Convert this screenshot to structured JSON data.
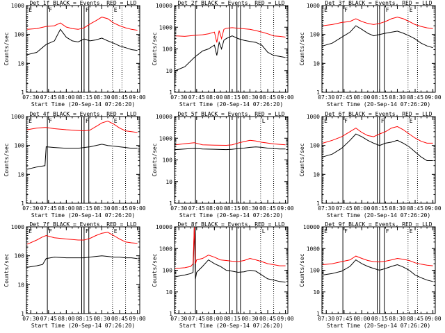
{
  "colors": {
    "events": "#000000",
    "lld": "#ff0000",
    "background": "#ffffff",
    "axis": "#000000"
  },
  "shared": {
    "xlabel": "Start Time (20-Sep-14 07:26:20)",
    "ylabel": "Counts/sec",
    "x_ticks": [
      "07:30",
      "07:45",
      "08:00",
      "08:15",
      "08:30",
      "08:45",
      "09:00"
    ],
    "x_range": [
      "07:26:20",
      "09:02:00"
    ],
    "y_scale": "log",
    "grid": false,
    "legend": "in title"
  },
  "chart_data": [
    {
      "type": "line",
      "title": "Det 1f BLACK = Events, RED = LLD",
      "ylim": [
        1,
        1000
      ],
      "y_ticks": [
        "1",
        "10",
        "100",
        "1000"
      ],
      "x": [
        "07:27",
        "07:35",
        "07:43",
        "07:50",
        "07:55",
        "08:00",
        "08:05",
        "08:10",
        "08:15",
        "08:20",
        "08:25",
        "08:30",
        "08:35",
        "08:40",
        "08:45",
        "08:50",
        "08:55",
        "09:00"
      ],
      "series": [
        {
          "name": "Events",
          "values": [
            20,
            24,
            45,
            60,
            150,
            80,
            60,
            55,
            70,
            60,
            65,
            75,
            60,
            50,
            40,
            35,
            30,
            28
          ]
        },
        {
          "name": "LLD",
          "values": [
            150,
            160,
            190,
            200,
            250,
            180,
            160,
            150,
            170,
            230,
            300,
            400,
            350,
            250,
            200,
            170,
            150,
            140
          ]
        }
      ],
      "markers": [
        {
          "label": "E",
          "x": "07:27",
          "style": "dotted"
        },
        {
          "label": "F",
          "x": "07:44",
          "style": "solid"
        },
        {
          "label": "",
          "x": "08:13",
          "style": "solid"
        },
        {
          "label": "F",
          "x": "08:15",
          "style": "solid"
        },
        {
          "label": "",
          "x": "08:19",
          "style": "solid"
        },
        {
          "label": "E",
          "x": "08:39",
          "style": "dotted"
        },
        {
          "label": "",
          "x": "08:47",
          "style": "dotted"
        }
      ]
    },
    {
      "type": "line",
      "title": "Det 2f BLACK = Events, RED = LLD",
      "ylim": [
        1,
        10000
      ],
      "y_ticks": [
        "1",
        "10",
        "100",
        "1000",
        "10000"
      ],
      "x": [
        "07:27",
        "07:35",
        "07:43",
        "07:50",
        "07:55",
        "08:00",
        "08:02",
        "08:04",
        "08:06",
        "08:08",
        "08:10",
        "08:15",
        "08:20",
        "08:25",
        "08:30",
        "08:35",
        "08:40",
        "08:45",
        "08:50",
        "08:55",
        "09:00"
      ],
      "series": [
        {
          "name": "Events",
          "values": [
            10,
            15,
            40,
            80,
            100,
            150,
            50,
            200,
            100,
            250,
            300,
            400,
            300,
            250,
            220,
            200,
            150,
            70,
            50,
            45,
            40
          ]
        },
        {
          "name": "LLD",
          "values": [
            400,
            380,
            420,
            450,
            500,
            600,
            200,
            700,
            300,
            800,
            900,
            950,
            900,
            850,
            800,
            700,
            600,
            500,
            400,
            380,
            350
          ]
        }
      ],
      "markers": [
        {
          "label": "",
          "x": "07:27",
          "style": "dotted"
        },
        {
          "label": "",
          "x": "07:44",
          "style": "solid"
        },
        {
          "label": "",
          "x": "08:13",
          "style": "solid"
        },
        {
          "label": "",
          "x": "08:19",
          "style": "solid"
        },
        {
          "label": "",
          "x": "08:22",
          "style": "solid"
        },
        {
          "label": "",
          "x": "08:39",
          "style": "dotted"
        },
        {
          "label": "",
          "x": "08:50",
          "style": "dotted"
        }
      ]
    },
    {
      "type": "line",
      "title": "Det 3f BLACK = Events, RED = LLD",
      "ylim": [
        1,
        1000
      ],
      "y_ticks": [
        "1",
        "10",
        "100",
        "1000"
      ],
      "x": [
        "07:27",
        "07:35",
        "07:43",
        "07:50",
        "07:55",
        "08:00",
        "08:05",
        "08:10",
        "08:15",
        "08:20",
        "08:25",
        "08:30",
        "08:35",
        "08:40",
        "08:45",
        "08:50",
        "08:55",
        "09:00"
      ],
      "series": [
        {
          "name": "Events",
          "values": [
            40,
            50,
            80,
            120,
            200,
            150,
            110,
            90,
            100,
            110,
            120,
            130,
            110,
            90,
            70,
            50,
            40,
            35
          ]
        },
        {
          "name": "LLD",
          "values": [
            200,
            220,
            260,
            280,
            350,
            280,
            240,
            220,
            240,
            280,
            350,
            400,
            350,
            280,
            220,
            190,
            170,
            160
          ]
        }
      ],
      "markers": [
        {
          "label": "E",
          "x": "07:27",
          "style": "dotted"
        },
        {
          "label": "F",
          "x": "07:44",
          "style": "solid"
        },
        {
          "label": "",
          "x": "08:13",
          "style": "solid"
        },
        {
          "label": "",
          "x": "08:15",
          "style": "solid"
        },
        {
          "label": "F",
          "x": "08:19",
          "style": "solid"
        },
        {
          "label": "E",
          "x": "08:39",
          "style": "dotted"
        },
        {
          "label": "",
          "x": "08:47",
          "style": "dotted"
        }
      ]
    },
    {
      "type": "line",
      "title": "Det 4f BLACK = Events, RED = LLD",
      "ylim": [
        1,
        1000
      ],
      "y_ticks": [
        "1",
        "10",
        "100",
        "1000"
      ],
      "x": [
        "07:27",
        "07:35",
        "07:42",
        "07:43",
        "07:50",
        "08:00",
        "08:10",
        "08:15",
        "08:20",
        "08:25",
        "08:30",
        "08:35",
        "08:40",
        "08:45",
        "08:50",
        "08:55",
        "09:00"
      ],
      "series": [
        {
          "name": "Events",
          "values": [
            15,
            18,
            20,
            90,
            85,
            80,
            80,
            85,
            90,
            100,
            110,
            100,
            95,
            90,
            85,
            80,
            80
          ]
        },
        {
          "name": "LLD",
          "values": [
            350,
            400,
            420,
            420,
            380,
            350,
            330,
            320,
            340,
            450,
            600,
            700,
            550,
            400,
            320,
            300,
            280
          ]
        }
      ],
      "markers": [
        {
          "label": "E",
          "x": "07:27",
          "style": "dotted"
        },
        {
          "label": "F",
          "x": "07:44",
          "style": "solid"
        },
        {
          "label": "",
          "x": "08:13",
          "style": "solid"
        },
        {
          "label": "F",
          "x": "08:15",
          "style": "solid"
        },
        {
          "label": "",
          "x": "08:19",
          "style": "solid"
        },
        {
          "label": "E",
          "x": "08:39",
          "style": "dotted"
        },
        {
          "label": "",
          "x": "08:50",
          "style": "dotted"
        }
      ]
    },
    {
      "type": "line",
      "title": "Det 5f BLACK = Events, RED = LLD",
      "ylim": [
        1,
        10000
      ],
      "y_ticks": [
        "1",
        "10",
        "100",
        "1000",
        "10000"
      ],
      "x": [
        "07:27",
        "07:35",
        "07:43",
        "07:50",
        "08:00",
        "08:10",
        "08:15",
        "08:20",
        "08:25",
        "08:30",
        "08:35",
        "08:40",
        "08:45",
        "08:50",
        "08:55",
        "09:00"
      ],
      "series": [
        {
          "name": "Events",
          "values": [
            300,
            320,
            340,
            320,
            310,
            300,
            310,
            330,
            350,
            380,
            400,
            380,
            350,
            330,
            320,
            320
          ]
        },
        {
          "name": "LLD",
          "values": [
            500,
            560,
            620,
            500,
            480,
            470,
            500,
            600,
            700,
            800,
            750,
            650,
            600,
            550,
            520,
            500
          ]
        }
      ],
      "markers": [
        {
          "label": "",
          "x": "07:27",
          "style": "dotted"
        },
        {
          "label": "",
          "x": "07:44",
          "style": "solid"
        },
        {
          "label": "",
          "x": "08:13",
          "style": "solid"
        },
        {
          "label": "",
          "x": "08:19",
          "style": "solid"
        },
        {
          "label": "",
          "x": "08:22",
          "style": "solid"
        },
        {
          "label": "L",
          "x": "08:39",
          "style": "dotted"
        },
        {
          "label": "",
          "x": "08:50",
          "style": "dotted"
        }
      ]
    },
    {
      "type": "line",
      "title": "Det 6f BLACK = Events, RED = LLD",
      "ylim": [
        1,
        1000
      ],
      "y_ticks": [
        "1",
        "10",
        "100",
        "1000"
      ],
      "x": [
        "07:27",
        "07:35",
        "07:43",
        "07:50",
        "07:55",
        "08:00",
        "08:05",
        "08:10",
        "08:15",
        "08:20",
        "08:25",
        "08:30",
        "08:35",
        "08:40",
        "08:45",
        "08:50",
        "08:55",
        "09:00"
      ],
      "series": [
        {
          "name": "Events",
          "values": [
            40,
            50,
            80,
            150,
            250,
            200,
            150,
            120,
            100,
            120,
            130,
            150,
            120,
            90,
            60,
            40,
            30,
            30
          ]
        },
        {
          "name": "LLD",
          "values": [
            120,
            150,
            200,
            300,
            400,
            280,
            220,
            200,
            250,
            300,
            400,
            450,
            350,
            250,
            180,
            140,
            120,
            120
          ]
        }
      ],
      "markers": [
        {
          "label": "E",
          "x": "07:27",
          "style": "dotted"
        },
        {
          "label": "F",
          "x": "07:44",
          "style": "solid"
        },
        {
          "label": "",
          "x": "08:13",
          "style": "solid"
        },
        {
          "label": "F",
          "x": "08:15",
          "style": "solid"
        },
        {
          "label": "",
          "x": "08:19",
          "style": "solid"
        },
        {
          "label": "E",
          "x": "08:39",
          "style": "dotted"
        },
        {
          "label": "",
          "x": "08:47",
          "style": "dotted"
        }
      ]
    },
    {
      "type": "line",
      "title": "Det 7f BLACK = Events, RED = LLD",
      "ylim": [
        1,
        1000
      ],
      "y_ticks": [
        "1",
        "10",
        "100",
        "1000"
      ],
      "x": [
        "07:27",
        "07:35",
        "07:40",
        "07:43",
        "07:50",
        "08:00",
        "08:10",
        "08:15",
        "08:20",
        "08:25",
        "08:30",
        "08:35",
        "08:40",
        "08:45",
        "08:50",
        "08:55",
        "09:00"
      ],
      "series": [
        {
          "name": "Events",
          "values": [
            40,
            45,
            50,
            80,
            90,
            85,
            85,
            85,
            90,
            95,
            100,
            95,
            90,
            90,
            85,
            85,
            80
          ]
        },
        {
          "name": "LLD",
          "values": [
            250,
            350,
            450,
            500,
            420,
            380,
            350,
            350,
            400,
            500,
            600,
            650,
            500,
            380,
            300,
            280,
            270
          ]
        }
      ],
      "markers": [
        {
          "label": "E",
          "x": "07:27",
          "style": "dotted"
        },
        {
          "label": "F",
          "x": "07:44",
          "style": "solid"
        },
        {
          "label": "",
          "x": "08:13",
          "style": "solid"
        },
        {
          "label": "F",
          "x": "08:15",
          "style": "solid"
        },
        {
          "label": "",
          "x": "08:19",
          "style": "solid"
        },
        {
          "label": "E",
          "x": "08:39",
          "style": "dotted"
        },
        {
          "label": "",
          "x": "08:50",
          "style": "dotted"
        }
      ]
    },
    {
      "type": "line",
      "title": "Det 8f BLACK = Events, RED = LLD",
      "ylim": [
        1,
        10000
      ],
      "y_ticks": [
        "1",
        "10",
        "100",
        "1000",
        "10000"
      ],
      "x": [
        "07:27",
        "07:35",
        "07:40",
        "07:42",
        "07:43",
        "07:44",
        "07:45",
        "07:50",
        "07:55",
        "08:00",
        "08:05",
        "08:10",
        "08:15",
        "08:20",
        "08:25",
        "08:30",
        "08:35",
        "08:40",
        "08:45",
        "08:50",
        "08:55",
        "09:00"
      ],
      "series": [
        {
          "name": "Events",
          "values": [
            50,
            60,
            70,
            80,
            9000,
            40,
            80,
            150,
            300,
            200,
            150,
            100,
            90,
            80,
            85,
            100,
            90,
            60,
            40,
            35,
            30,
            28
          ]
        },
        {
          "name": "LLD",
          "values": [
            120,
            130,
            150,
            200,
            10000,
            200,
            300,
            350,
            500,
            400,
            300,
            280,
            260,
            250,
            280,
            350,
            300,
            250,
            200,
            180,
            160,
            160
          ]
        }
      ],
      "markers": [
        {
          "label": "",
          "x": "07:27",
          "style": "dotted"
        },
        {
          "label": "",
          "x": "07:44",
          "style": "solid"
        },
        {
          "label": "",
          "x": "08:13",
          "style": "solid"
        },
        {
          "label": "",
          "x": "08:19",
          "style": "solid"
        },
        {
          "label": "",
          "x": "08:22",
          "style": "solid"
        },
        {
          "label": "L",
          "x": "08:39",
          "style": "dotted"
        },
        {
          "label": "",
          "x": "08:50",
          "style": "dotted"
        }
      ]
    },
    {
      "type": "line",
      "title": "Det 9f BLACK = Events, RED = LLD",
      "ylim": [
        1,
        10000
      ],
      "y_ticks": [
        "1",
        "10",
        "100",
        "1000",
        "10000"
      ],
      "x": [
        "07:27",
        "07:35",
        "07:43",
        "07:50",
        "07:55",
        "08:00",
        "08:05",
        "08:10",
        "08:15",
        "08:20",
        "08:25",
        "08:30",
        "08:35",
        "08:40",
        "08:45",
        "08:50",
        "08:55",
        "09:00"
      ],
      "series": [
        {
          "name": "Events",
          "values": [
            60,
            70,
            90,
            150,
            300,
            200,
            150,
            120,
            100,
            120,
            150,
            180,
            140,
            100,
            60,
            45,
            35,
            30
          ]
        },
        {
          "name": "LLD",
          "values": [
            180,
            200,
            250,
            300,
            450,
            350,
            280,
            250,
            240,
            260,
            300,
            350,
            320,
            280,
            220,
            190,
            170,
            160
          ]
        }
      ],
      "markers": [
        {
          "label": "E",
          "x": "07:27",
          "style": "dotted"
        },
        {
          "label": "F",
          "x": "07:44",
          "style": "solid"
        },
        {
          "label": "",
          "x": "08:13",
          "style": "solid"
        },
        {
          "label": "",
          "x": "08:15",
          "style": "solid"
        },
        {
          "label": "F",
          "x": "08:19",
          "style": "solid"
        },
        {
          "label": "E",
          "x": "08:39",
          "style": "dotted"
        },
        {
          "label": "",
          "x": "08:47",
          "style": "dotted"
        }
      ]
    }
  ]
}
